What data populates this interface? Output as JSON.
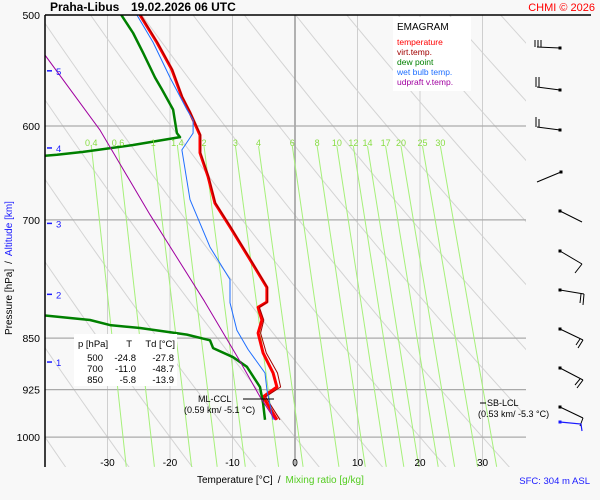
{
  "header": {
    "station": "Praha-Libus",
    "datetime": "19.02.2026 06 UTC",
    "copyright": "CHMI © 2026"
  },
  "legend": {
    "title": "EMAGRAM",
    "items": [
      {
        "label": "temperature",
        "color": "#ff0000"
      },
      {
        "label": "virt.temp.",
        "color": "#a00000"
      },
      {
        "label": "dew point",
        "color": "#008000"
      },
      {
        "label": "wet bulb temp.",
        "color": "#1e6eff"
      },
      {
        "label": "udpraft v.temp.",
        "color": "#a000a0"
      }
    ]
  },
  "table": {
    "headers": [
      "p [hPa]",
      "T",
      "Td [°C]"
    ],
    "rows": [
      [
        "500",
        "-24.8",
        "-27.8"
      ],
      [
        "700",
        "-11.0",
        "-48.7"
      ],
      [
        "850",
        "-5.8",
        "-13.9"
      ]
    ]
  },
  "annotations": {
    "ml_ccl": {
      "label": "ML-CCL",
      "detail": "(0.59 km/ -5.1 °C)"
    },
    "sb_lcl": {
      "label": "SB-LCL",
      "detail": "(0.53 km/ -5.3 °C)"
    },
    "sfc": "SFC: 304 m ASL"
  },
  "chart_data": {
    "type": "line",
    "title": "Praha-Libus 19.02.2026 06 UTC",
    "xlabel": "Temperature [°C]",
    "xlabel_sep": "/",
    "xlabel2": "Mixing ratio [g/kg]",
    "ylabel": "Pressure [hPa]",
    "ylabel_sep": "/",
    "ylabel2": "Altitude [km]",
    "xlim": [
      -40,
      37
    ],
    "ylim": [
      1050,
      500
    ],
    "x_ticks": [
      -30,
      -20,
      -10,
      0,
      10,
      20,
      30
    ],
    "y_ticks": [
      500,
      600,
      700,
      850,
      925,
      1000
    ],
    "altitude_ticks": [
      {
        "km": "1",
        "p": 884
      },
      {
        "km": "2",
        "p": 791
      },
      {
        "km": "3",
        "p": 704
      },
      {
        "km": "4",
        "p": 622
      },
      {
        "km": "5",
        "p": 548
      }
    ],
    "mixing_ratio_labels": [
      "0.4",
      "0.6",
      "1",
      "1.4",
      "2",
      "3",
      "4",
      "6",
      "8",
      "10",
      "12",
      "14",
      "17",
      "20",
      "25",
      "30"
    ],
    "grid": true,
    "legend_position": "top-right",
    "series": [
      {
        "name": "temperature",
        "color": "#ff0000",
        "points": [
          [
            500,
            -24.8
          ],
          [
            523,
            -22.1
          ],
          [
            547,
            -19.7
          ],
          [
            572,
            -18.1
          ],
          [
            587,
            -16.8
          ],
          [
            609,
            -15.2
          ],
          [
            627,
            -15.2
          ],
          [
            652,
            -13.9
          ],
          [
            681,
            -12.8
          ],
          [
            708,
            -10.4
          ],
          [
            747,
            -7.2
          ],
          [
            782,
            -4.5
          ],
          [
            801,
            -4.5
          ],
          [
            808,
            -5.9
          ],
          [
            825,
            -5.3
          ],
          [
            843,
            -5.9
          ],
          [
            871,
            -5.1
          ],
          [
            900,
            -3.5
          ],
          [
            921,
            -2.9
          ],
          [
            936,
            -5.1
          ],
          [
            972,
            -2.9
          ]
        ]
      },
      {
        "name": "virt.temp.",
        "color": "#a00000",
        "points": [
          [
            500,
            -24.7
          ],
          [
            523,
            -22.0
          ],
          [
            547,
            -19.6
          ],
          [
            572,
            -18.0
          ],
          [
            587,
            -16.7
          ],
          [
            609,
            -15.1
          ],
          [
            627,
            -15.1
          ],
          [
            652,
            -13.8
          ],
          [
            681,
            -12.7
          ],
          [
            708,
            -10.3
          ],
          [
            747,
            -7.1
          ],
          [
            782,
            -4.4
          ],
          [
            801,
            -4.4
          ],
          [
            808,
            -5.7
          ],
          [
            825,
            -5.0
          ],
          [
            843,
            -5.5
          ],
          [
            871,
            -4.6
          ],
          [
            900,
            -2.8
          ],
          [
            921,
            -2.3
          ],
          [
            936,
            -4.7
          ],
          [
            972,
            -2.4
          ]
        ]
      },
      {
        "name": "dew point",
        "color": "#008000",
        "points": [
          [
            500,
            -27.8
          ],
          [
            515,
            -25.9
          ],
          [
            532,
            -24.3
          ],
          [
            554,
            -22.4
          ],
          [
            565,
            -21.3
          ],
          [
            584,
            -19.5
          ],
          [
            607,
            -18.9
          ],
          [
            611,
            -18.4
          ],
          [
            619,
            -25.9
          ],
          [
            626,
            -33.9
          ],
          [
            629,
            -38.1
          ],
          [
            632,
            -44
          ],
          [
            700,
            -48.7
          ],
          [
            810,
            -46
          ],
          [
            819,
            -40
          ],
          [
            825,
            -32.8
          ],
          [
            832,
            -29.6
          ],
          [
            836,
            -24.8
          ],
          [
            845,
            -17.3
          ],
          [
            853,
            -13.6
          ],
          [
            864,
            -13.1
          ],
          [
            877,
            -9.9
          ],
          [
            891,
            -7.7
          ],
          [
            921,
            -5.6
          ],
          [
            946,
            -5.1
          ],
          [
            972,
            -4.8
          ]
        ]
      },
      {
        "name": "wet bulb temp.",
        "color": "#1e6eff",
        "points": [
          [
            500,
            -25.3
          ],
          [
            523,
            -22.7
          ],
          [
            554,
            -20.0
          ],
          [
            584,
            -17.3
          ],
          [
            594,
            -16.3
          ],
          [
            607,
            -16.3
          ],
          [
            624,
            -18.1
          ],
          [
            677,
            -16.8
          ],
          [
            732,
            -13.6
          ],
          [
            772,
            -10.4
          ],
          [
            802,
            -10.4
          ],
          [
            839,
            -9.3
          ],
          [
            866,
            -7.5
          ],
          [
            900,
            -4.8
          ],
          [
            925,
            -4.5
          ],
          [
            972,
            -3.5
          ]
        ]
      },
      {
        "name": "udpraft v.temp.",
        "color": "#a000a0",
        "points": [
          [
            534,
            -40
          ],
          [
            604,
            -31.2
          ],
          [
            694,
            -23.2
          ],
          [
            800,
            -14.5
          ],
          [
            880,
            -9.0
          ],
          [
            936,
            -5.6
          ],
          [
            972,
            -3.2
          ]
        ]
      }
    ]
  }
}
